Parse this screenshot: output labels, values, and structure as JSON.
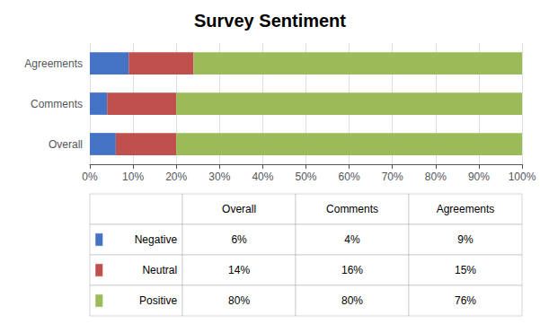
{
  "chart_data": {
    "type": "bar",
    "title": "Survey Sentiment",
    "orientation": "horizontal",
    "stacked": true,
    "grid": true,
    "categories": [
      "Overall",
      "Comments",
      "Agreements"
    ],
    "series": [
      {
        "name": "Negative",
        "color": "#4472C4",
        "values": [
          6,
          4,
          9
        ],
        "value_labels": [
          "6%",
          "4%",
          "9%"
        ]
      },
      {
        "name": "Neutral",
        "color": "#C0504D",
        "values": [
          14,
          16,
          15
        ],
        "value_labels": [
          "14%",
          "16%",
          "15%"
        ]
      },
      {
        "name": "Positive",
        "color": "#9BBB59",
        "values": [
          80,
          80,
          76
        ],
        "value_labels": [
          "80%",
          "80%",
          "76%"
        ]
      }
    ],
    "xlim": [
      0,
      100
    ],
    "xticks": [
      {
        "value": 0,
        "label": "0%"
      },
      {
        "value": 10,
        "label": "10%"
      },
      {
        "value": 20,
        "label": "20%"
      },
      {
        "value": 30,
        "label": "30%"
      },
      {
        "value": 40,
        "label": "40%"
      },
      {
        "value": 50,
        "label": "50%"
      },
      {
        "value": 60,
        "label": "60%"
      },
      {
        "value": 70,
        "label": "70%"
      },
      {
        "value": 80,
        "label": "80%"
      },
      {
        "value": 90,
        "label": "90%"
      },
      {
        "value": 100,
        "label": "100%"
      }
    ]
  }
}
